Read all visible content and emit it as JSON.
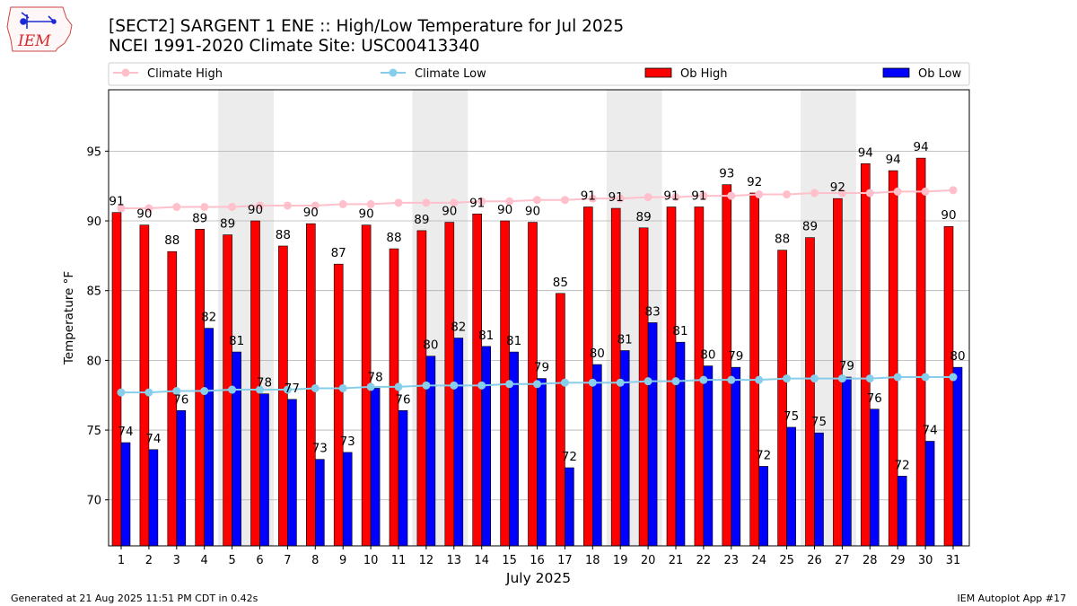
{
  "logo": {
    "text": "IEM"
  },
  "title_line1": "[SECT2] SARGENT 1 ENE :: High/Low Temperature for Jul 2025",
  "title_line2": "NCEI 1991-2020 Climate Site: USC00413340",
  "footer_left": "Generated at 21 Aug 2025 11:51 PM CDT in 0.42s",
  "footer_right": "IEM Autoplot App #17",
  "colors": {
    "ob_high": "#ff0000",
    "ob_low": "#0000ff",
    "climate_high": "#ffc0cb",
    "climate_low": "#87ceeb",
    "weekend_shade": "#ececec",
    "grid": "#b0b0b0"
  },
  "chart_data": {
    "type": "bar",
    "xlabel": "July 2025",
    "ylabel": "Temperature °F",
    "ylim": [
      66.7,
      99.4
    ],
    "yticks": [
      70,
      75,
      80,
      85,
      90,
      95
    ],
    "grid": "horizontal",
    "legend_position": "top",
    "categories": [
      "1",
      "2",
      "3",
      "4",
      "5",
      "6",
      "7",
      "8",
      "9",
      "10",
      "11",
      "12",
      "13",
      "14",
      "15",
      "16",
      "17",
      "18",
      "19",
      "20",
      "21",
      "22",
      "23",
      "24",
      "25",
      "26",
      "27",
      "28",
      "29",
      "30",
      "31"
    ],
    "shaded_days": [
      [
        5,
        6
      ],
      [
        12,
        13
      ],
      [
        19,
        20
      ],
      [
        26,
        27
      ]
    ],
    "series": [
      {
        "name": "Ob High",
        "kind": "bar",
        "values": [
          90.6,
          89.7,
          87.8,
          89.4,
          89.0,
          90.0,
          88.2,
          89.8,
          86.9,
          89.7,
          88.0,
          89.3,
          89.9,
          90.5,
          90.0,
          89.9,
          84.8,
          91.0,
          90.9,
          89.5,
          91.0,
          91.0,
          92.6,
          92.0,
          87.9,
          88.8,
          91.6,
          94.1,
          93.6,
          94.5,
          89.6
        ],
        "labels": [
          "91",
          "90",
          "88",
          "89",
          "89",
          "90",
          "88",
          "90",
          "87",
          "90",
          "88",
          "89",
          "90",
          "91",
          "90",
          "90",
          "85",
          "91",
          "91",
          "89",
          "91",
          "91",
          "93",
          "92",
          "88",
          "89",
          "92",
          "94",
          "94",
          "94",
          "90"
        ]
      },
      {
        "name": "Ob Low",
        "kind": "bar",
        "values": [
          74.1,
          73.6,
          76.4,
          82.3,
          80.6,
          77.6,
          77.2,
          72.9,
          73.4,
          78.0,
          76.4,
          80.3,
          81.6,
          81.0,
          80.6,
          78.7,
          72.3,
          79.7,
          80.7,
          82.7,
          81.3,
          79.6,
          79.5,
          72.4,
          75.2,
          74.8,
          78.8,
          76.5,
          71.7,
          74.2,
          79.5
        ],
        "labels": [
          "74",
          "74",
          "76",
          "82",
          "81",
          "78",
          "77",
          "73",
          "73",
          "78",
          "76",
          "80",
          "82",
          "81",
          "81",
          "79",
          "72",
          "80",
          "81",
          "83",
          "81",
          "80",
          "79",
          "72",
          "75",
          "75",
          "79",
          "76",
          "72",
          "74",
          "80"
        ]
      },
      {
        "name": "Climate High",
        "kind": "line",
        "values": [
          90.9,
          90.9,
          91.0,
          91.0,
          91.0,
          91.1,
          91.1,
          91.1,
          91.2,
          91.2,
          91.3,
          91.3,
          91.3,
          91.4,
          91.4,
          91.5,
          91.5,
          91.6,
          91.6,
          91.7,
          91.7,
          91.8,
          91.8,
          91.9,
          91.9,
          92.0,
          92.0,
          92.0,
          92.1,
          92.1,
          92.2
        ]
      },
      {
        "name": "Climate Low",
        "kind": "line",
        "values": [
          77.7,
          77.7,
          77.8,
          77.8,
          77.9,
          77.9,
          77.9,
          78.0,
          78.0,
          78.1,
          78.1,
          78.2,
          78.2,
          78.2,
          78.3,
          78.3,
          78.4,
          78.4,
          78.4,
          78.5,
          78.5,
          78.6,
          78.6,
          78.6,
          78.7,
          78.7,
          78.7,
          78.7,
          78.8,
          78.8,
          78.8
        ]
      }
    ]
  }
}
